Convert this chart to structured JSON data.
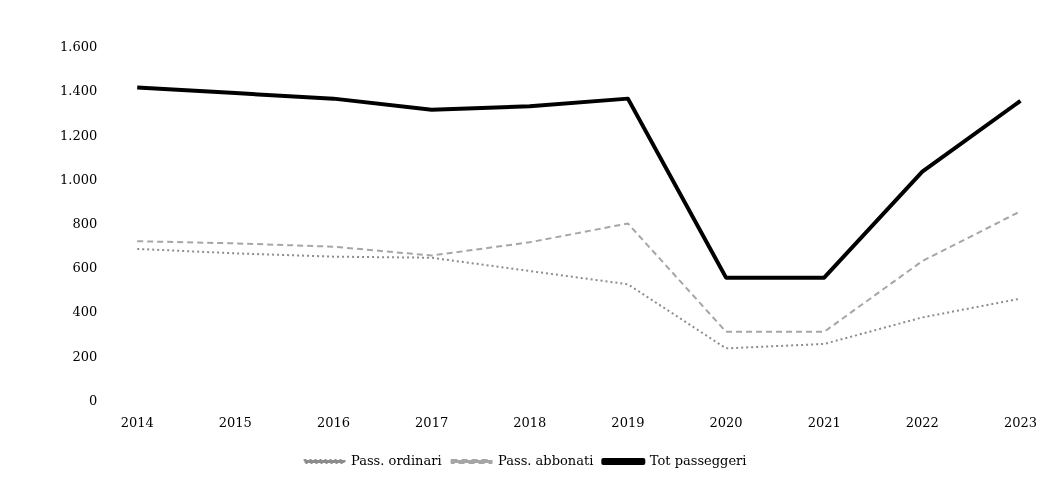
{
  "chart_data": {
    "type": "line",
    "categories": [
      "2014",
      "2015",
      "2016",
      "2017",
      "2018",
      "2019",
      "2020",
      "2021",
      "2022",
      "2023"
    ],
    "series": [
      {
        "name": "Pass. ordinari",
        "color": "#8c8c8c",
        "line_style": "dotted",
        "values": [
          690,
          670,
          655,
          650,
          590,
          530,
          240,
          260,
          380,
          465
        ]
      },
      {
        "name": "Pass. abbonati",
        "color": "#a6a6a6",
        "line_style": "dashed",
        "values": [
          725,
          715,
          700,
          660,
          720,
          805,
          315,
          315,
          635,
          860
        ]
      },
      {
        "name": "Tot passeggeri",
        "color": "#000000",
        "line_style": "solid",
        "values": [
          1420,
          1395,
          1370,
          1320,
          1335,
          1370,
          560,
          560,
          1040,
          1360
        ]
      }
    ],
    "ylim": [
      0,
      1600
    ],
    "yticks": [
      {
        "value": 0,
        "label": "0"
      },
      {
        "value": 200,
        "label": "200"
      },
      {
        "value": 400,
        "label": "400"
      },
      {
        "value": 600,
        "label": "600"
      },
      {
        "value": 800,
        "label": "800"
      },
      {
        "value": 1000,
        "label": "1.000"
      },
      {
        "value": 1200,
        "label": "1.200"
      },
      {
        "value": 1400,
        "label": "1.400"
      },
      {
        "value": 1600,
        "label": "1.600"
      }
    ],
    "grid": false,
    "legend": "bottom",
    "marker": "none"
  }
}
